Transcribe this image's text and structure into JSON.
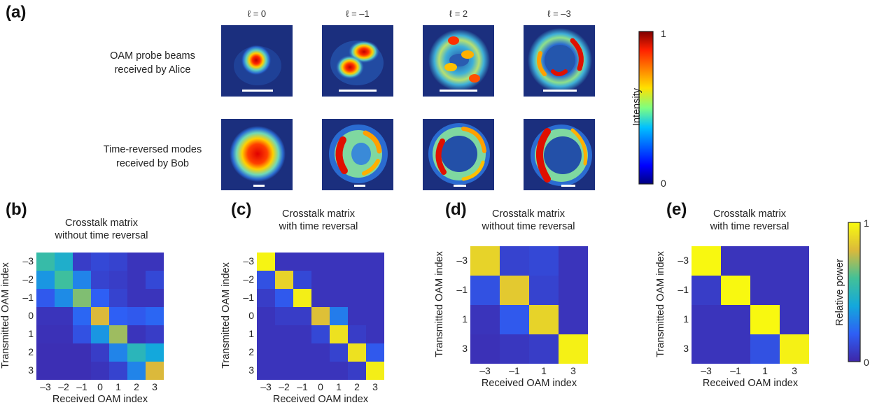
{
  "panel_labels": {
    "a": "(a)",
    "b": "(b)",
    "c": "(c)",
    "d": "(d)",
    "e": "(e)"
  },
  "panel_a": {
    "column_titles": [
      "ℓ = 0",
      "ℓ = –1",
      "ℓ = 2",
      "ℓ = –3"
    ],
    "row_labels": [
      {
        "line1": "OAM probe beams",
        "line2": "received by Alice"
      },
      {
        "line1": "Time-reversed modes",
        "line2": "received by Bob"
      }
    ],
    "colorbar": {
      "label": "Intensity",
      "max": "1",
      "min": "0"
    }
  },
  "colorbar_right": {
    "label": "Relative power",
    "max": "1",
    "min": "0"
  },
  "chart_data": [
    {
      "type": "heatmap",
      "panel": "b",
      "title_line1": "Crosstalk matrix",
      "title_line2": "without time reversal",
      "xlabel": "Received OAM index",
      "ylabel": "Transmitted OAM index",
      "x_ticks": [
        "–3",
        "–2",
        "–1",
        "0",
        "1",
        "2",
        "3"
      ],
      "y_ticks": [
        "–3",
        "–2",
        "–1",
        "0",
        "1",
        "2",
        "3"
      ],
      "colormap": "parula",
      "values": [
        [
          0.55,
          0.45,
          0.08,
          0.12,
          0.1,
          0.05,
          0.05
        ],
        [
          0.35,
          0.58,
          0.3,
          0.1,
          0.08,
          0.05,
          0.12
        ],
        [
          0.18,
          0.32,
          0.68,
          0.2,
          0.1,
          0.05,
          0.05
        ],
        [
          0.05,
          0.05,
          0.22,
          0.8,
          0.2,
          0.18,
          0.22
        ],
        [
          0.04,
          0.04,
          0.15,
          0.35,
          0.72,
          0.05,
          0.08
        ],
        [
          0.03,
          0.03,
          0.03,
          0.08,
          0.3,
          0.5,
          0.4
        ],
        [
          0.03,
          0.03,
          0.03,
          0.05,
          0.1,
          0.3,
          0.8
        ]
      ]
    },
    {
      "type": "heatmap",
      "panel": "c",
      "title_line1": "Crosstalk matrix",
      "title_line2": "with time reversal",
      "xlabel": "Received OAM index",
      "ylabel": "Transmitted OAM index",
      "x_ticks": [
        "–3",
        "–2",
        "–1",
        "0",
        "1",
        "2",
        "3"
      ],
      "y_ticks": [
        "–3",
        "–2",
        "–1",
        "0",
        "1",
        "2",
        "3"
      ],
      "colormap": "parula",
      "values": [
        [
          0.98,
          0.05,
          0.05,
          0.05,
          0.05,
          0.05,
          0.05
        ],
        [
          0.15,
          0.88,
          0.12,
          0.05,
          0.05,
          0.05,
          0.05
        ],
        [
          0.08,
          0.18,
          0.96,
          0.05,
          0.05,
          0.05,
          0.05
        ],
        [
          0.05,
          0.08,
          0.08,
          0.82,
          0.28,
          0.05,
          0.05
        ],
        [
          0.05,
          0.05,
          0.05,
          0.12,
          0.92,
          0.08,
          0.05
        ],
        [
          0.05,
          0.05,
          0.05,
          0.05,
          0.1,
          0.92,
          0.18
        ],
        [
          0.05,
          0.05,
          0.05,
          0.05,
          0.05,
          0.08,
          0.96
        ]
      ]
    },
    {
      "type": "heatmap",
      "panel": "d",
      "title_line1": "Crosstalk matrix",
      "title_line2": "without time reversal",
      "xlabel": "Received OAM index",
      "ylabel": "Transmitted OAM index",
      "x_ticks": [
        "–3",
        "–1",
        "1",
        "3"
      ],
      "y_ticks": [
        "–3",
        "–1",
        "1",
        "3"
      ],
      "colormap": "parula",
      "values": [
        [
          0.88,
          0.1,
          0.12,
          0.05
        ],
        [
          0.15,
          0.85,
          0.1,
          0.05
        ],
        [
          0.05,
          0.18,
          0.88,
          0.05
        ],
        [
          0.04,
          0.06,
          0.08,
          0.97
        ]
      ]
    },
    {
      "type": "heatmap",
      "panel": "e",
      "title_line1": "Crosstalk matrix",
      "title_line2": "with time reversal",
      "xlabel": "Received OAM index",
      "ylabel": "Transmitted OAM index",
      "x_ticks": [
        "–3",
        "–1",
        "1",
        "3"
      ],
      "y_ticks": [
        "–3",
        "–1",
        "1",
        "3"
      ],
      "colormap": "parula",
      "values": [
        [
          0.99,
          0.05,
          0.05,
          0.05
        ],
        [
          0.08,
          0.99,
          0.05,
          0.05
        ],
        [
          0.05,
          0.05,
          0.99,
          0.05
        ],
        [
          0.05,
          0.05,
          0.15,
          0.97
        ]
      ]
    }
  ]
}
